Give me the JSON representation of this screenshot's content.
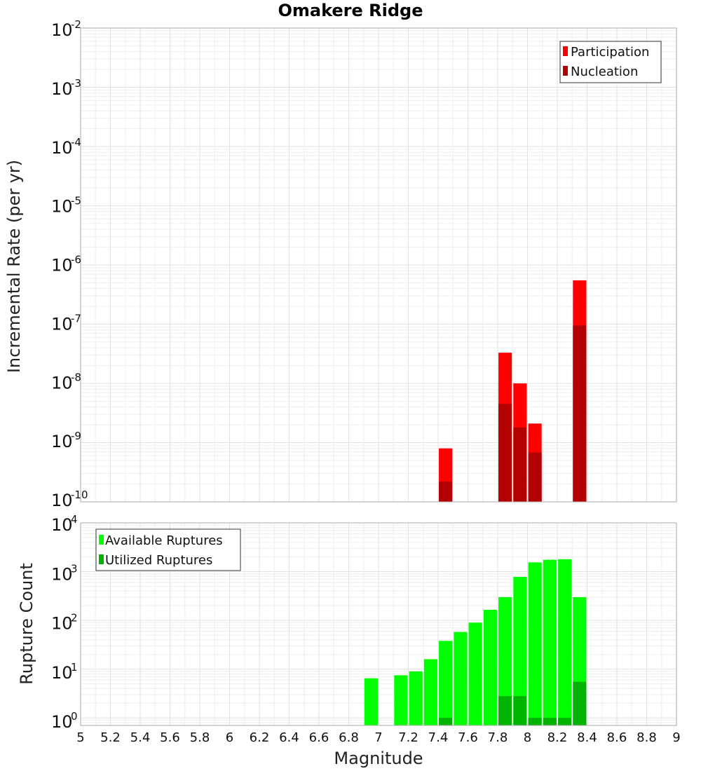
{
  "chart_data": [
    {
      "type": "bar",
      "title": "Omakere Ridge",
      "ylabel": "Incremental Rate (per yr)",
      "yscale": "log",
      "ylim": [
        1e-10,
        0.01
      ],
      "ytick_labels": [
        "10",
        "10",
        "10",
        "10",
        "10",
        "10",
        "10",
        "10",
        "10"
      ],
      "ytick_exponents": [
        "-10",
        "-9",
        "-8",
        "-7",
        "-6",
        "-5",
        "-4",
        "-3",
        "-2"
      ],
      "legend_position": "top-right",
      "grid": true,
      "series": [
        {
          "name": "Participation",
          "color": "#ff0000",
          "x": [
            7.45,
            7.85,
            7.95,
            8.05,
            8.35
          ],
          "values": [
            8e-10,
            3.3e-08,
            1e-08,
            2.1e-09,
            5.5e-07
          ]
        },
        {
          "name": "Nucleation",
          "color": "#b30000",
          "x": [
            7.45,
            7.85,
            7.95,
            8.05,
            8.35
          ],
          "values": [
            2.2e-10,
            4.5e-09,
            1.8e-09,
            6.8e-10,
            9.5e-08
          ]
        }
      ]
    },
    {
      "type": "bar",
      "xlabel": "Magnitude",
      "ylabel": "Rupture Count",
      "yscale": "log",
      "ylim": [
        0.7,
        10000
      ],
      "ytick_labels": [
        "10",
        "10",
        "10",
        "10",
        "10"
      ],
      "ytick_exponents": [
        "0",
        "1",
        "2",
        "3",
        "4"
      ],
      "xlim": [
        5,
        9
      ],
      "xtick_labels": [
        "5",
        "5.2",
        "5.4",
        "5.6",
        "5.8",
        "6",
        "6.2",
        "6.4",
        "6.6",
        "6.8",
        "7",
        "7.2",
        "7.4",
        "7.6",
        "7.8",
        "8",
        "8.2",
        "8.4",
        "8.6",
        "8.8",
        "9"
      ],
      "legend_position": "top-left",
      "grid": true,
      "series": [
        {
          "name": "Available Ruptures",
          "color": "#00ff00",
          "x": [
            6.95,
            7.15,
            7.25,
            7.35,
            7.45,
            7.55,
            7.65,
            7.75,
            7.85,
            7.95,
            8.05,
            8.15,
            8.25,
            8.35
          ],
          "values": [
            6.5,
            7.5,
            9,
            16,
            38,
            58,
            90,
            165,
            300,
            780,
            1550,
            1750,
            1800,
            300
          ]
        },
        {
          "name": "Utilized Ruptures",
          "color": "#00b300",
          "x": [
            7.45,
            7.85,
            7.95,
            8.05,
            8.15,
            8.25,
            8.35
          ],
          "values": [
            1,
            2.8,
            2.8,
            1,
            1,
            1,
            5.5
          ]
        }
      ]
    }
  ]
}
